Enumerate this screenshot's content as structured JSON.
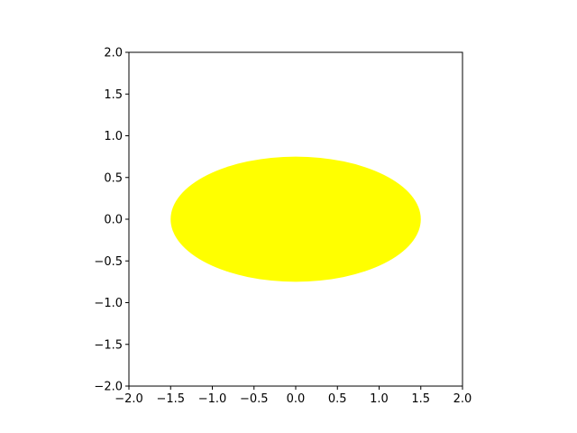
{
  "chart_data": {
    "type": "scatter",
    "title": "",
    "xlabel": "",
    "ylabel": "",
    "xlim": [
      -2.0,
      2.0
    ],
    "ylim": [
      -2.0,
      2.0
    ],
    "aspect": "equal",
    "grid": false,
    "xticks": [
      "−2.0",
      "−1.5",
      "−1.0",
      "−0.5",
      "0.0",
      "0.5",
      "1.0",
      "1.5",
      "2.0"
    ],
    "yticks": [
      "−2.0",
      "−1.5",
      "−1.0",
      "−0.5",
      "0.0",
      "0.5",
      "1.0",
      "1.5",
      "2.0"
    ],
    "xtick_values": [
      -2.0,
      -1.5,
      -1.0,
      -0.5,
      0.0,
      0.5,
      1.0,
      1.5,
      2.0
    ],
    "ytick_values": [
      -2.0,
      -1.5,
      -1.0,
      -0.5,
      0.0,
      0.5,
      1.0,
      1.5,
      2.0
    ],
    "shapes": [
      {
        "kind": "ellipse",
        "center": [
          0.0,
          0.0
        ],
        "width": 3.0,
        "height": 1.5,
        "color": "#ffff00"
      }
    ]
  }
}
